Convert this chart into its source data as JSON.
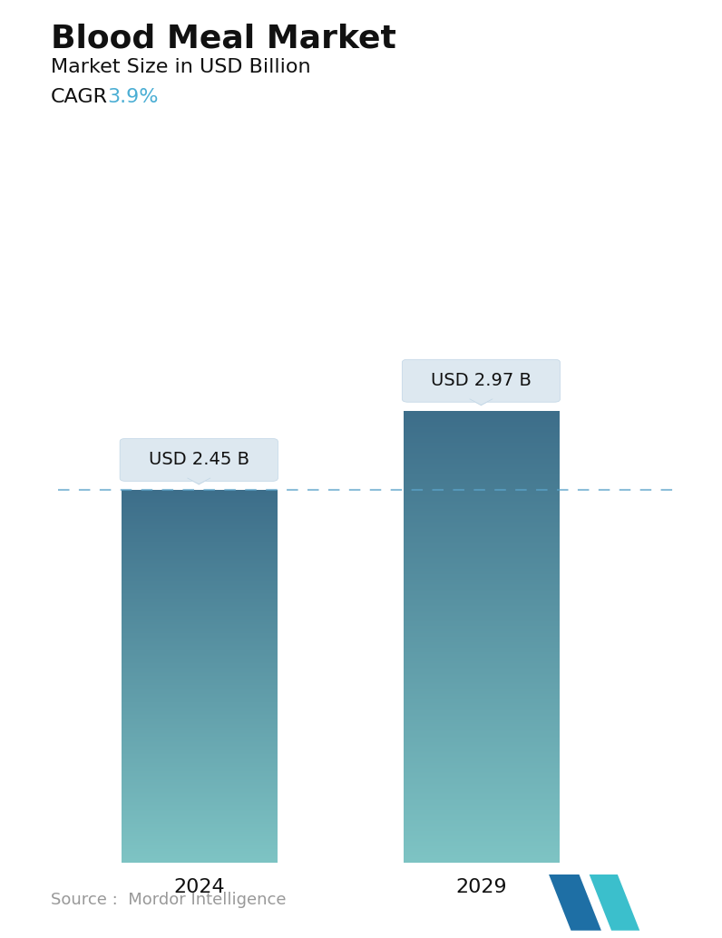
{
  "title": "Blood Meal Market",
  "subtitle": "Market Size in USD Billion",
  "cagr_label": "CAGR  ",
  "cagr_value": "3.9%",
  "cagr_color": "#4BAED4",
  "categories": [
    "2024",
    "2029"
  ],
  "values": [
    2.45,
    2.97
  ],
  "labels": [
    "USD 2.45 B",
    "USD 2.97 B"
  ],
  "bar_color_top": "#3d6e8a",
  "bar_color_bottom": "#7ec4c4",
  "dashed_line_color": "#5ba3c9",
  "dashed_line_value": 2.45,
  "background_color": "#ffffff",
  "source_text": "Source :  Mordor Intelligence",
  "source_color": "#999999",
  "title_fontsize": 26,
  "subtitle_fontsize": 16,
  "cagr_fontsize": 16,
  "label_fontsize": 14,
  "tick_fontsize": 16,
  "source_fontsize": 13,
  "ylim": [
    0,
    3.7
  ],
  "callout_bg": "#dde8f0",
  "callout_border": "#c0d5e5"
}
